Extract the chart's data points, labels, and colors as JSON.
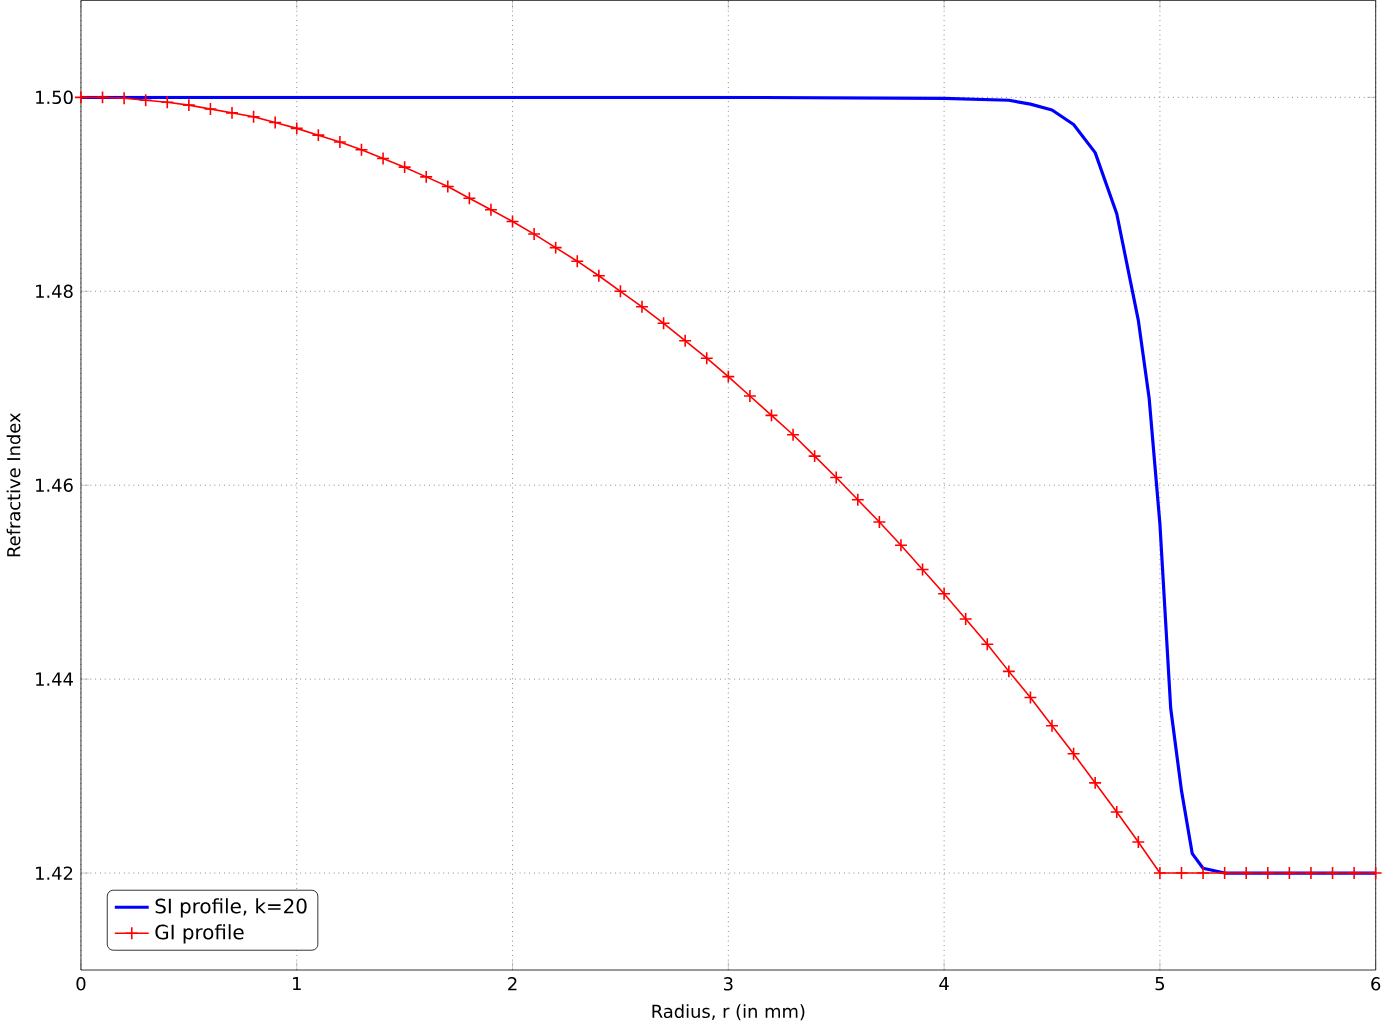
{
  "chart_data": {
    "type": "line",
    "xlabel": "Radius, r (in mm)",
    "ylabel": "Refractive Index",
    "xlim": [
      0,
      6
    ],
    "ylim": [
      1.41,
      1.51
    ],
    "xticks": [
      0,
      1,
      2,
      3,
      4,
      5,
      6
    ],
    "yticks": [
      {
        "value": 1.42,
        "label": "1.42"
      },
      {
        "value": 1.44,
        "label": "1.44"
      },
      {
        "value": 1.46,
        "label": "1.46"
      },
      {
        "value": 1.48,
        "label": "1.48"
      },
      {
        "value": 1.5,
        "label": "1.50"
      }
    ],
    "grid": true,
    "legend": "bottom left",
    "series": [
      {
        "name": "SI profile, k=20",
        "color": "#0000ff",
        "marker": "none",
        "x": [
          0,
          1,
          2,
          3,
          4,
          4.3,
          4.4,
          4.5,
          4.6,
          4.7,
          4.8,
          4.9,
          4.95,
          5,
          5.05,
          5.1,
          5.15,
          5.2,
          5.3,
          5.5,
          6
        ],
        "values": [
          1.5,
          1.5,
          1.5,
          1.5,
          1.4999,
          1.4997,
          1.4993,
          1.4987,
          1.4972,
          1.4943,
          1.488,
          1.477,
          1.469,
          1.456,
          1.437,
          1.4285,
          1.422,
          1.4205,
          1.42,
          1.42,
          1.42
        ]
      },
      {
        "name": "GI profile",
        "color": "#ff0000",
        "marker": "cross",
        "x": [
          0,
          0.1,
          0.2,
          0.3,
          0.4,
          0.5,
          0.6,
          0.7,
          0.8,
          0.9,
          1,
          1.1,
          1.2,
          1.3,
          1.4,
          1.5,
          1.6,
          1.7,
          1.8,
          1.9,
          2,
          2.1,
          2.2,
          2.3,
          2.4,
          2.5,
          2.6,
          2.7,
          2.8,
          2.9,
          3,
          3.1,
          3.2,
          3.3,
          3.4,
          3.5,
          3.6,
          3.7,
          3.8,
          3.9,
          4,
          4.1,
          4.2,
          4.3,
          4.4,
          4.5,
          4.6,
          4.7,
          4.8,
          4.9,
          5,
          5.1,
          5.2,
          5.3,
          5.4,
          5.5,
          5.6,
          5.7,
          5.8,
          5.9,
          6
        ],
        "values": [
          1.5,
          1.5,
          1.4999,
          1.4997,
          1.4995,
          1.4992,
          1.4988,
          1.4984,
          1.498,
          1.4974,
          1.4968,
          1.4961,
          1.4954,
          1.4946,
          1.4937,
          1.4928,
          1.4918,
          1.4908,
          1.4896,
          1.4884,
          1.4872,
          1.4859,
          1.4845,
          1.4831,
          1.4816,
          1.48,
          1.4784,
          1.4767,
          1.4749,
          1.4731,
          1.4712,
          1.4692,
          1.4672,
          1.4652,
          1.463,
          1.4608,
          1.4585,
          1.4562,
          1.4538,
          1.4513,
          1.4488,
          1.4462,
          1.4436,
          1.4408,
          1.4381,
          1.4352,
          1.4323,
          1.4293,
          1.4263,
          1.4232,
          1.42,
          1.42,
          1.42,
          1.42,
          1.42,
          1.42,
          1.42,
          1.42,
          1.42,
          1.42,
          1.42
        ]
      }
    ]
  }
}
